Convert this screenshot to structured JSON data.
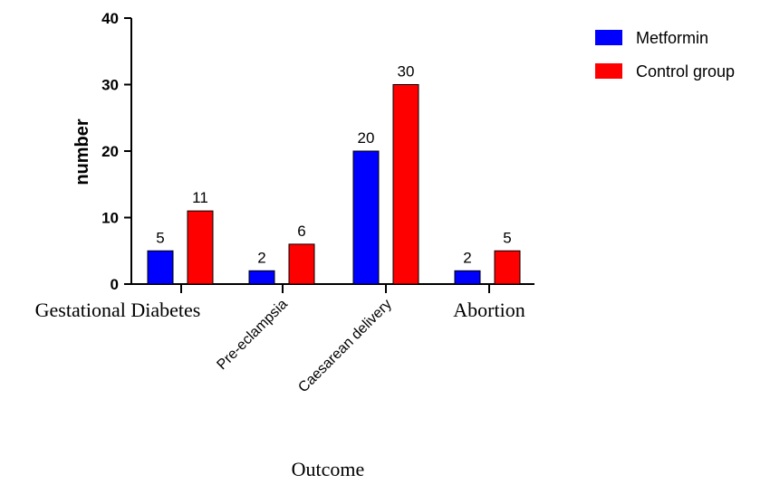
{
  "chart_data": {
    "type": "bar",
    "title": "",
    "xlabel": "Outcome",
    "ylabel": "number",
    "ylim": [
      0,
      40
    ],
    "yticks": [
      0,
      10,
      20,
      30,
      40
    ],
    "categories": [
      "Gestational Diabetes",
      "Pre-eclampsia",
      "Caesarean delivery",
      "Abortion"
    ],
    "series": [
      {
        "name": "Metformin",
        "values": [
          5,
          2,
          20,
          2
        ],
        "color": "#0000ff"
      },
      {
        "name": "Control group",
        "values": [
          11,
          6,
          30,
          5
        ],
        "color": "#ff0000"
      }
    ],
    "grid": false,
    "legend": "top-right"
  }
}
